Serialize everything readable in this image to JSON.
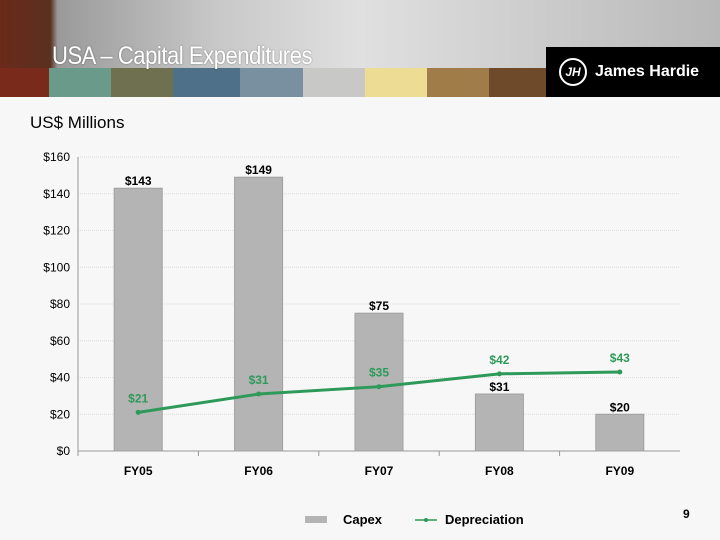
{
  "header": {
    "title": "USA – Capital Expenditures",
    "logo_text": "James Hardie",
    "logo_mark": "JH",
    "swatches": [
      "#7a2a1a",
      "#6a9a8a",
      "#6e7050",
      "#4e7088",
      "#7890a0",
      "#c8c8c6",
      "#ecdc94",
      "#a07c48",
      "#6e4a2a"
    ]
  },
  "subtitle": "US$ Millions",
  "page_number": "9",
  "chart_data": {
    "type": "bar",
    "categories": [
      "FY05",
      "FY06",
      "FY07",
      "FY08",
      "FY09"
    ],
    "series": [
      {
        "name": "Capex",
        "kind": "bar",
        "color": "#b4b4b4",
        "values": [
          143,
          149,
          75,
          31,
          20
        ],
        "labels": [
          "$143",
          "$149",
          "$75",
          "$31",
          "$20"
        ]
      },
      {
        "name": "Depreciation",
        "kind": "line",
        "color": "#2e9a5a",
        "values": [
          21,
          31,
          35,
          42,
          43
        ],
        "labels": [
          "$21",
          "$31",
          "$35",
          "$42",
          "$43"
        ]
      }
    ],
    "ylim": [
      0,
      160
    ],
    "yticks": [
      0,
      20,
      40,
      60,
      80,
      100,
      120,
      140,
      160
    ],
    "ytick_labels": [
      "$0",
      "$20",
      "$40",
      "$60",
      "$80",
      "$100",
      "$120",
      "$140",
      "$160"
    ],
    "grid": true,
    "legend": "bottom"
  }
}
